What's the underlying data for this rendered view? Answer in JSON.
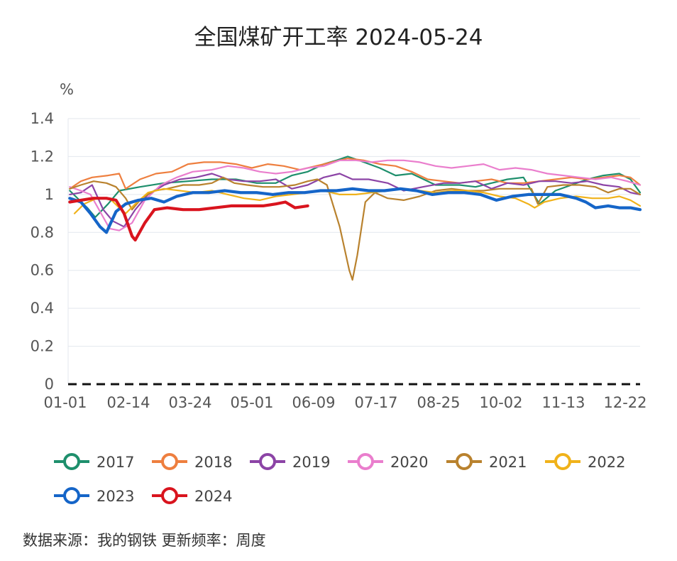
{
  "chart_data": {
    "type": "line",
    "title": "全国煤矿开工率 2024-05-24",
    "unit_label": "%",
    "ylim": [
      0,
      1.4
    ],
    "y_ticks": [
      "0",
      "0.2",
      "0.4",
      "0.6",
      "0.8",
      "1",
      "1.2",
      "1.4"
    ],
    "x_ticks": [
      "01-01",
      "02-14",
      "03-24",
      "05-01",
      "06-09",
      "07-17",
      "08-25",
      "10-02",
      "11-13",
      "12-22"
    ],
    "grid": true,
    "baseline": {
      "value": 0,
      "style": "dashed",
      "color": "#111111"
    },
    "legend_position": "bottom",
    "source_text": "数据来源：我的钢铁  更新频率：周度",
    "series": [
      {
        "name": "2017",
        "color": "#1e8f6c",
        "points": [
          [
            1,
            1.02
          ],
          [
            12,
            0.93
          ],
          [
            17,
            0.88
          ],
          [
            25,
            0.95
          ],
          [
            32,
            1.02
          ],
          [
            45,
            1.04
          ],
          [
            60,
            1.06
          ],
          [
            75,
            1.07
          ],
          [
            90,
            1.08
          ],
          [
            105,
            1.08
          ],
          [
            118,
            1.06
          ],
          [
            130,
            1.06
          ],
          [
            140,
            1.1
          ],
          [
            150,
            1.12
          ],
          [
            160,
            1.16
          ],
          [
            168,
            1.18
          ],
          [
            175,
            1.2
          ],
          [
            182,
            1.18
          ],
          [
            195,
            1.14
          ],
          [
            205,
            1.1
          ],
          [
            215,
            1.11
          ],
          [
            230,
            1.05
          ],
          [
            245,
            1.05
          ],
          [
            255,
            1.04
          ],
          [
            265,
            1.06
          ],
          [
            275,
            1.08
          ],
          [
            285,
            1.09
          ],
          [
            295,
            0.95
          ],
          [
            305,
            1.02
          ],
          [
            315,
            1.05
          ],
          [
            325,
            1.08
          ],
          [
            335,
            1.1
          ],
          [
            345,
            1.11
          ],
          [
            352,
            1.08
          ],
          [
            358,
            1.01
          ]
        ]
      },
      {
        "name": "2018",
        "color": "#ee7f3f",
        "points": [
          [
            1,
            1.03
          ],
          [
            8,
            1.07
          ],
          [
            15,
            1.09
          ],
          [
            25,
            1.1
          ],
          [
            32,
            1.11
          ],
          [
            36,
            1.03
          ],
          [
            45,
            1.08
          ],
          [
            55,
            1.11
          ],
          [
            65,
            1.12
          ],
          [
            75,
            1.16
          ],
          [
            85,
            1.17
          ],
          [
            95,
            1.17
          ],
          [
            105,
            1.16
          ],
          [
            115,
            1.14
          ],
          [
            125,
            1.16
          ],
          [
            135,
            1.15
          ],
          [
            145,
            1.13
          ],
          [
            155,
            1.15
          ],
          [
            165,
            1.17
          ],
          [
            175,
            1.19
          ],
          [
            185,
            1.18
          ],
          [
            195,
            1.16
          ],
          [
            205,
            1.15
          ],
          [
            215,
            1.12
          ],
          [
            225,
            1.08
          ],
          [
            235,
            1.07
          ],
          [
            245,
            1.06
          ],
          [
            255,
            1.07
          ],
          [
            265,
            1.08
          ],
          [
            275,
            1.06
          ],
          [
            285,
            1.06
          ],
          [
            295,
            1.07
          ],
          [
            305,
            1.08
          ],
          [
            315,
            1.09
          ],
          [
            325,
            1.08
          ],
          [
            335,
            1.09
          ],
          [
            345,
            1.1
          ],
          [
            352,
            1.09
          ],
          [
            358,
            1.05
          ]
        ]
      },
      {
        "name": "2019",
        "color": "#8c44a6",
        "points": [
          [
            1,
            1.0
          ],
          [
            8,
            1.01
          ],
          [
            15,
            1.05
          ],
          [
            22,
            0.92
          ],
          [
            28,
            0.86
          ],
          [
            35,
            0.83
          ],
          [
            42,
            0.92
          ],
          [
            50,
            1.0
          ],
          [
            60,
            1.05
          ],
          [
            70,
            1.08
          ],
          [
            80,
            1.09
          ],
          [
            90,
            1.11
          ],
          [
            100,
            1.08
          ],
          [
            110,
            1.07
          ],
          [
            120,
            1.07
          ],
          [
            130,
            1.08
          ],
          [
            140,
            1.03
          ],
          [
            150,
            1.05
          ],
          [
            160,
            1.09
          ],
          [
            170,
            1.11
          ],
          [
            178,
            1.08
          ],
          [
            188,
            1.08
          ],
          [
            200,
            1.06
          ],
          [
            210,
            1.02
          ],
          [
            222,
            1.04
          ],
          [
            235,
            1.06
          ],
          [
            245,
            1.06
          ],
          [
            255,
            1.07
          ],
          [
            265,
            1.03
          ],
          [
            275,
            1.06
          ],
          [
            285,
            1.05
          ],
          [
            295,
            1.07
          ],
          [
            305,
            1.07
          ],
          [
            315,
            1.06
          ],
          [
            325,
            1.07
          ],
          [
            335,
            1.05
          ],
          [
            345,
            1.04
          ],
          [
            352,
            1.01
          ],
          [
            358,
            1.0
          ]
        ]
      },
      {
        "name": "2020",
        "color": "#ea7ecd",
        "points": [
          [
            1,
            1.04
          ],
          [
            8,
            1.02
          ],
          [
            14,
            1.0
          ],
          [
            20,
            0.91
          ],
          [
            26,
            0.82
          ],
          [
            32,
            0.81
          ],
          [
            40,
            0.85
          ],
          [
            48,
            0.97
          ],
          [
            58,
            1.05
          ],
          [
            68,
            1.09
          ],
          [
            78,
            1.12
          ],
          [
            90,
            1.13
          ],
          [
            100,
            1.15
          ],
          [
            110,
            1.14
          ],
          [
            120,
            1.12
          ],
          [
            130,
            1.11
          ],
          [
            140,
            1.12
          ],
          [
            150,
            1.14
          ],
          [
            160,
            1.15
          ],
          [
            170,
            1.18
          ],
          [
            180,
            1.18
          ],
          [
            190,
            1.17
          ],
          [
            200,
            1.18
          ],
          [
            210,
            1.18
          ],
          [
            220,
            1.17
          ],
          [
            230,
            1.15
          ],
          [
            240,
            1.14
          ],
          [
            250,
            1.15
          ],
          [
            260,
            1.16
          ],
          [
            270,
            1.13
          ],
          [
            280,
            1.14
          ],
          [
            290,
            1.13
          ],
          [
            300,
            1.11
          ],
          [
            310,
            1.1
          ],
          [
            320,
            1.09
          ],
          [
            330,
            1.08
          ],
          [
            340,
            1.09
          ],
          [
            350,
            1.07
          ],
          [
            358,
            1.05
          ]
        ]
      },
      {
        "name": "2021",
        "color": "#b9822e",
        "points": [
          [
            1,
            1.03
          ],
          [
            8,
            1.05
          ],
          [
            16,
            1.07
          ],
          [
            24,
            1.06
          ],
          [
            30,
            1.04
          ],
          [
            36,
            0.98
          ],
          [
            40,
            0.92
          ],
          [
            46,
            0.98
          ],
          [
            54,
            1.02
          ],
          [
            62,
            1.03
          ],
          [
            72,
            1.05
          ],
          [
            82,
            1.05
          ],
          [
            90,
            1.06
          ],
          [
            97,
            1.09
          ],
          [
            104,
            1.06
          ],
          [
            112,
            1.05
          ],
          [
            122,
            1.04
          ],
          [
            132,
            1.04
          ],
          [
            142,
            1.05
          ],
          [
            150,
            1.07
          ],
          [
            156,
            1.08
          ],
          [
            162,
            1.05
          ],
          [
            170,
            0.83
          ],
          [
            176,
            0.6
          ],
          [
            178,
            0.55
          ],
          [
            181,
            0.68
          ],
          [
            186,
            0.96
          ],
          [
            192,
            1.01
          ],
          [
            200,
            0.98
          ],
          [
            210,
            0.97
          ],
          [
            220,
            0.99
          ],
          [
            230,
            1.02
          ],
          [
            240,
            1.03
          ],
          [
            250,
            1.02
          ],
          [
            260,
            1.02
          ],
          [
            270,
            1.03
          ],
          [
            280,
            1.03
          ],
          [
            290,
            1.03
          ],
          [
            294,
            0.95
          ],
          [
            300,
            1.04
          ],
          [
            310,
            1.05
          ],
          [
            320,
            1.05
          ],
          [
            330,
            1.04
          ],
          [
            338,
            1.01
          ],
          [
            345,
            1.03
          ],
          [
            352,
            1.03
          ],
          [
            358,
            1.0
          ]
        ]
      },
      {
        "name": "2022",
        "color": "#f0b21a",
        "points": [
          [
            4,
            0.9
          ],
          [
            10,
            0.95
          ],
          [
            18,
            0.98
          ],
          [
            26,
            0.98
          ],
          [
            32,
            0.93
          ],
          [
            36,
            0.9
          ],
          [
            42,
            0.95
          ],
          [
            50,
            1.01
          ],
          [
            60,
            1.03
          ],
          [
            70,
            1.02
          ],
          [
            80,
            1.01
          ],
          [
            90,
            1.02
          ],
          [
            100,
            1.0
          ],
          [
            110,
            0.98
          ],
          [
            120,
            0.97
          ],
          [
            130,
            0.99
          ],
          [
            140,
            1.0
          ],
          [
            150,
            1.01
          ],
          [
            160,
            1.02
          ],
          [
            170,
            1.0
          ],
          [
            180,
            1.0
          ],
          [
            190,
            1.01
          ],
          [
            200,
            1.02
          ],
          [
            210,
            1.03
          ],
          [
            220,
            1.02
          ],
          [
            230,
            1.01
          ],
          [
            240,
            1.02
          ],
          [
            250,
            1.02
          ],
          [
            260,
            1.01
          ],
          [
            270,
            0.99
          ],
          [
            280,
            0.98
          ],
          [
            288,
            0.95
          ],
          [
            292,
            0.93
          ],
          [
            298,
            0.96
          ],
          [
            308,
            0.98
          ],
          [
            318,
            0.99
          ],
          [
            328,
            0.98
          ],
          [
            338,
            0.98
          ],
          [
            345,
            0.99
          ],
          [
            352,
            0.97
          ],
          [
            358,
            0.94
          ]
        ]
      },
      {
        "name": "2023",
        "color": "#1565c8",
        "points": [
          [
            1,
            0.98
          ],
          [
            8,
            0.96
          ],
          [
            14,
            0.9
          ],
          [
            20,
            0.83
          ],
          [
            24,
            0.8
          ],
          [
            30,
            0.91
          ],
          [
            36,
            0.95
          ],
          [
            44,
            0.97
          ],
          [
            52,
            0.98
          ],
          [
            60,
            0.96
          ],
          [
            68,
            0.99
          ],
          [
            78,
            1.01
          ],
          [
            88,
            1.01
          ],
          [
            98,
            1.02
          ],
          [
            108,
            1.01
          ],
          [
            118,
            1.01
          ],
          [
            128,
            1.0
          ],
          [
            138,
            1.01
          ],
          [
            148,
            1.01
          ],
          [
            158,
            1.02
          ],
          [
            168,
            1.02
          ],
          [
            178,
            1.03
          ],
          [
            188,
            1.02
          ],
          [
            198,
            1.02
          ],
          [
            208,
            1.03
          ],
          [
            218,
            1.02
          ],
          [
            228,
            1.0
          ],
          [
            238,
            1.01
          ],
          [
            248,
            1.01
          ],
          [
            258,
            1.0
          ],
          [
            268,
            0.97
          ],
          [
            278,
            0.99
          ],
          [
            288,
            1.0
          ],
          [
            298,
            1.0
          ],
          [
            308,
            1.0
          ],
          [
            318,
            0.98
          ],
          [
            324,
            0.96
          ],
          [
            330,
            0.93
          ],
          [
            338,
            0.94
          ],
          [
            345,
            0.93
          ],
          [
            352,
            0.93
          ],
          [
            358,
            0.92
          ]
        ]
      },
      {
        "name": "2024",
        "color": "#d9141e",
        "points": [
          [
            1,
            0.96
          ],
          [
            8,
            0.97
          ],
          [
            16,
            0.98
          ],
          [
            24,
            0.98
          ],
          [
            30,
            0.97
          ],
          [
            35,
            0.9
          ],
          [
            40,
            0.78
          ],
          [
            42,
            0.76
          ],
          [
            48,
            0.85
          ],
          [
            54,
            0.92
          ],
          [
            62,
            0.93
          ],
          [
            72,
            0.92
          ],
          [
            82,
            0.92
          ],
          [
            92,
            0.93
          ],
          [
            102,
            0.94
          ],
          [
            112,
            0.94
          ],
          [
            122,
            0.94
          ],
          [
            130,
            0.95
          ],
          [
            136,
            0.96
          ],
          [
            142,
            0.93
          ],
          [
            150,
            0.94
          ]
        ]
      }
    ]
  }
}
